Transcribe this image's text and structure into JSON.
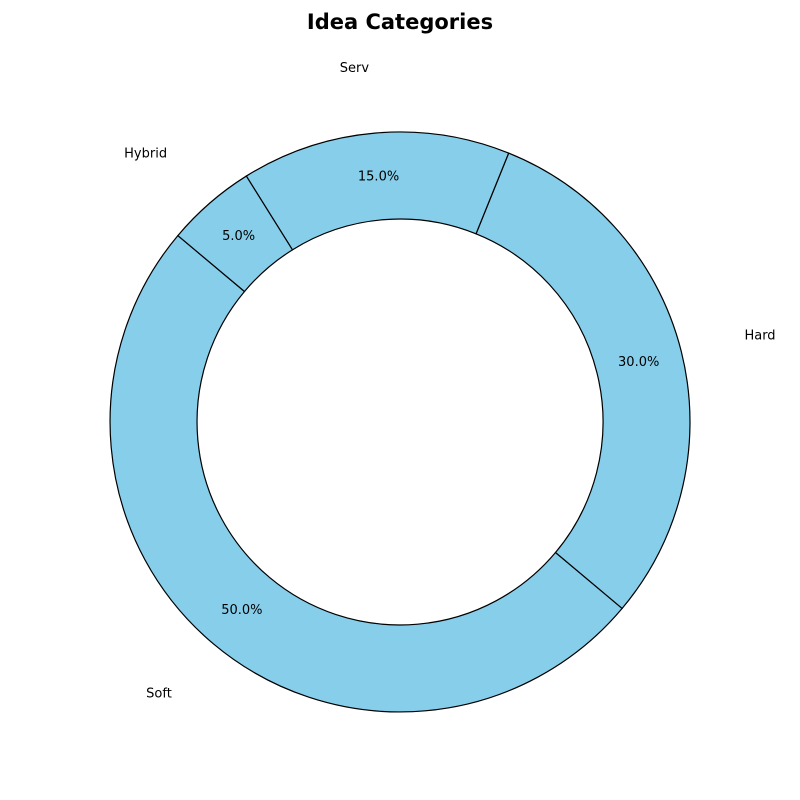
{
  "chart_data": {
    "type": "pie",
    "title": "Idea Categories",
    "categories": [
      "Soft",
      "Hard",
      "Serv",
      "Hybrid"
    ],
    "values": [
      50.0,
      30.0,
      15.0,
      5.0
    ],
    "percent_labels": [
      "50.0%",
      "30.0%",
      "15.0%",
      "5.0%"
    ],
    "donut": true,
    "colors": {
      "slice_fill": "#87CEEB",
      "edge": "#000000",
      "background": "#ffffff"
    }
  }
}
